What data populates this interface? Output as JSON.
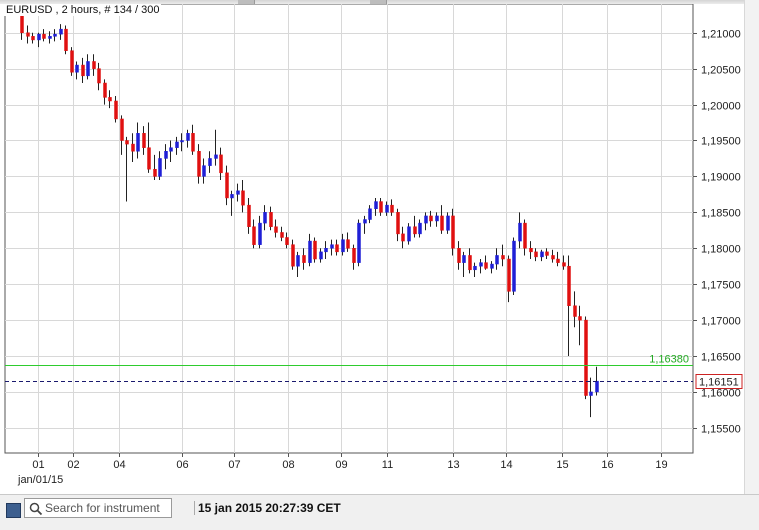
{
  "header": {
    "title": "EURUSD , 2 hours, # 134 / 300"
  },
  "status": {
    "search_placeholder": "Search for instrument",
    "datetime": "15 jan 2015 20:27:39 CET"
  },
  "colors": {
    "up": "#1f1fd6",
    "down": "#e01010",
    "grid": "#d8d8d8",
    "hline": "#2ecc2e",
    "current": "#1a1a6e",
    "current_label_border": "#cc2222"
  },
  "chart_data": {
    "type": "candlestick",
    "instrument": "EURUSD",
    "timeframe": "2 hours",
    "ylim": [
      1.1515,
      1.214
    ],
    "ytick_labels": [
      "1,21000",
      "1,20500",
      "1,20000",
      "1,19500",
      "1,19000",
      "1,18500",
      "1,18000",
      "1,17500",
      "1,17000",
      "1,16500",
      "1,16000",
      "1,15500"
    ],
    "yticks": [
      1.21,
      1.205,
      1.2,
      1.195,
      1.19,
      1.185,
      1.18,
      1.175,
      1.17,
      1.165,
      1.16,
      1.155
    ],
    "xtick_labels": [
      "01",
      "02",
      "04",
      "06",
      "07",
      "08",
      "09",
      "11",
      "13",
      "14",
      "15",
      "16",
      "19"
    ],
    "xtick_sub_label": "jan/01/15",
    "horizontal_line": {
      "value": 1.1638,
      "label": "1,16380"
    },
    "current_price": {
      "value": 1.16151,
      "label": "1,16151"
    },
    "candles": [
      [
        1.2135,
        1.214,
        1.209,
        1.21
      ],
      [
        1.21,
        1.211,
        1.2085,
        1.2095
      ],
      [
        1.2095,
        1.21,
        1.2085,
        1.209
      ],
      [
        1.209,
        1.21,
        1.208,
        1.2098
      ],
      [
        1.2098,
        1.2105,
        1.2088,
        1.2092
      ],
      [
        1.2092,
        1.2102,
        1.2085,
        1.2095
      ],
      [
        1.2095,
        1.2105,
        1.2088,
        1.2098
      ],
      [
        1.2098,
        1.2112,
        1.209,
        1.2105
      ],
      [
        1.2105,
        1.211,
        1.207,
        1.2075
      ],
      [
        1.2075,
        1.208,
        1.204,
        1.2045
      ],
      [
        1.2045,
        1.206,
        1.2035,
        1.2055
      ],
      [
        1.2055,
        1.2065,
        1.203,
        1.204
      ],
      [
        1.204,
        1.207,
        1.2035,
        1.206
      ],
      [
        1.206,
        1.207,
        1.204,
        1.205
      ],
      [
        1.205,
        1.2058,
        1.202,
        1.203
      ],
      [
        1.203,
        1.2035,
        1.2,
        1.201
      ],
      [
        1.201,
        1.202,
        1.1995,
        1.2005
      ],
      [
        1.2005,
        1.2012,
        1.1975,
        1.198
      ],
      [
        1.198,
        1.1985,
        1.193,
        1.195
      ],
      [
        1.195,
        1.1955,
        1.1865,
        1.1945
      ],
      [
        1.1945,
        1.196,
        1.192,
        1.1935
      ],
      [
        1.1935,
        1.1975,
        1.1925,
        1.196
      ],
      [
        1.196,
        1.197,
        1.193,
        1.194
      ],
      [
        1.194,
        1.1975,
        1.1905,
        1.191
      ],
      [
        1.191,
        1.193,
        1.1895,
        1.19
      ],
      [
        1.19,
        1.1935,
        1.1895,
        1.1925
      ],
      [
        1.1925,
        1.1945,
        1.191,
        1.1935
      ],
      [
        1.1935,
        1.195,
        1.192,
        1.194
      ],
      [
        1.194,
        1.1955,
        1.193,
        1.1948
      ],
      [
        1.1948,
        1.196,
        1.1935,
        1.195
      ],
      [
        1.195,
        1.1965,
        1.194,
        1.196
      ],
      [
        1.196,
        1.1972,
        1.193,
        1.1935
      ],
      [
        1.1935,
        1.1945,
        1.189,
        1.19
      ],
      [
        1.19,
        1.1925,
        1.189,
        1.1915
      ],
      [
        1.1915,
        1.1935,
        1.1905,
        1.1925
      ],
      [
        1.1925,
        1.1965,
        1.1915,
        1.193
      ],
      [
        1.193,
        1.194,
        1.1895,
        1.1905
      ],
      [
        1.1905,
        1.1915,
        1.186,
        1.187
      ],
      [
        1.187,
        1.188,
        1.1845,
        1.1875
      ],
      [
        1.1875,
        1.189,
        1.1865,
        1.188
      ],
      [
        1.188,
        1.1895,
        1.185,
        1.186
      ],
      [
        1.186,
        1.187,
        1.182,
        1.183
      ],
      [
        1.183,
        1.184,
        1.18,
        1.1805
      ],
      [
        1.1805,
        1.1845,
        1.18,
        1.1835
      ],
      [
        1.1835,
        1.186,
        1.1825,
        1.185
      ],
      [
        1.185,
        1.1858,
        1.1825,
        1.183
      ],
      [
        1.183,
        1.184,
        1.1815,
        1.1822
      ],
      [
        1.1822,
        1.183,
        1.181,
        1.1815
      ],
      [
        1.1815,
        1.1822,
        1.18,
        1.1805
      ],
      [
        1.1805,
        1.1812,
        1.177,
        1.1775
      ],
      [
        1.1775,
        1.1795,
        1.176,
        1.179
      ],
      [
        1.179,
        1.18,
        1.177,
        1.178
      ],
      [
        1.178,
        1.182,
        1.1775,
        1.181
      ],
      [
        1.181,
        1.1815,
        1.178,
        1.1785
      ],
      [
        1.1785,
        1.18,
        1.178,
        1.1795
      ],
      [
        1.1795,
        1.181,
        1.1785,
        1.18
      ],
      [
        1.18,
        1.1812,
        1.179,
        1.1805
      ],
      [
        1.1805,
        1.1812,
        1.179,
        1.1795
      ],
      [
        1.1795,
        1.182,
        1.179,
        1.1812
      ],
      [
        1.1812,
        1.1822,
        1.1795,
        1.18
      ],
      [
        1.18,
        1.1805,
        1.177,
        1.178
      ],
      [
        1.178,
        1.184,
        1.1775,
        1.1835
      ],
      [
        1.1835,
        1.1845,
        1.182,
        1.184
      ],
      [
        1.184,
        1.186,
        1.1835,
        1.1855
      ],
      [
        1.1855,
        1.187,
        1.1845,
        1.1865
      ],
      [
        1.1865,
        1.187,
        1.1845,
        1.185
      ],
      [
        1.185,
        1.1865,
        1.1845,
        1.186
      ],
      [
        1.186,
        1.1868,
        1.1845,
        1.185
      ],
      [
        1.185,
        1.1855,
        1.181,
        1.182
      ],
      [
        1.182,
        1.183,
        1.18,
        1.181
      ],
      [
        1.181,
        1.1835,
        1.1805,
        1.183
      ],
      [
        1.183,
        1.1845,
        1.1815,
        1.182
      ],
      [
        1.182,
        1.184,
        1.1815,
        1.1835
      ],
      [
        1.1835,
        1.185,
        1.1825,
        1.1845
      ],
      [
        1.1845,
        1.1852,
        1.183,
        1.1838
      ],
      [
        1.1838,
        1.185,
        1.183,
        1.1845
      ],
      [
        1.1845,
        1.186,
        1.182,
        1.1825
      ],
      [
        1.1825,
        1.185,
        1.182,
        1.1845
      ],
      [
        1.1845,
        1.1855,
        1.179,
        1.18
      ],
      [
        1.18,
        1.181,
        1.177,
        1.178
      ],
      [
        1.178,
        1.1795,
        1.176,
        1.179
      ],
      [
        1.179,
        1.18,
        1.1765,
        1.177
      ],
      [
        1.177,
        1.178,
        1.176,
        1.1775
      ],
      [
        1.1775,
        1.1785,
        1.1765,
        1.178
      ],
      [
        1.178,
        1.179,
        1.177,
        1.1772
      ],
      [
        1.1772,
        1.1782,
        1.1765,
        1.1778
      ],
      [
        1.1778,
        1.18,
        1.177,
        1.179
      ],
      [
        1.179,
        1.1805,
        1.1775,
        1.1785
      ],
      [
        1.1785,
        1.179,
        1.1725,
        1.174
      ],
      [
        1.174,
        1.1815,
        1.1735,
        1.181
      ],
      [
        1.181,
        1.185,
        1.18,
        1.1835
      ],
      [
        1.1835,
        1.184,
        1.179,
        1.18
      ],
      [
        1.18,
        1.181,
        1.1785,
        1.1795
      ],
      [
        1.1795,
        1.18,
        1.1782,
        1.1788
      ],
      [
        1.1788,
        1.1798,
        1.1782,
        1.1795
      ],
      [
        1.1795,
        1.18,
        1.1785,
        1.179
      ],
      [
        1.179,
        1.1798,
        1.178,
        1.1785
      ],
      [
        1.1785,
        1.1795,
        1.1775,
        1.178
      ],
      [
        1.178,
        1.179,
        1.177,
        1.1775
      ],
      [
        1.1775,
        1.179,
        1.165,
        1.172
      ],
      [
        1.172,
        1.174,
        1.169,
        1.1705
      ],
      [
        1.1705,
        1.172,
        1.1665,
        1.17
      ],
      [
        1.17,
        1.1705,
        1.159,
        1.1595
      ],
      [
        1.1595,
        1.162,
        1.1565,
        1.16
      ],
      [
        1.16,
        1.1635,
        1.1595,
        1.1615
      ]
    ]
  }
}
